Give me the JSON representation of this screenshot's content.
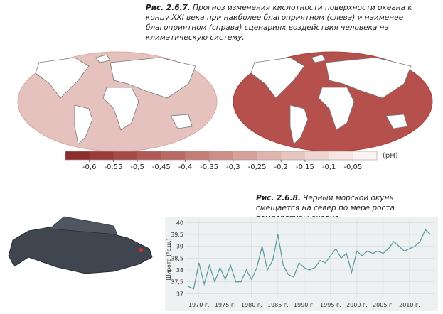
{
  "figure_2_6_7": {
    "caption_label": "Рис. 2.6.7.",
    "caption_text": "Прогноз изменения кислотности поверхности океана к концу XXI века при наиболее благоприятном (слева) и наименее благоприятном (справа) сценариях воздействия человека на климатическую систему.",
    "colorbar": {
      "unit": "(pH)",
      "colors": [
        "#8e2e2c",
        "#9a3c39",
        "#a54a46",
        "#b05a55",
        "#ba6a65",
        "#c47c76",
        "#cd8e88",
        "#d6a19b",
        "#dfb3ae",
        "#e7c5c1",
        "#eed6d3",
        "#f5e6e4",
        "#fbf4f3"
      ],
      "ticks": [
        {
          "value": -0.6,
          "label": "-0,6"
        },
        {
          "value": -0.55,
          "label": "-0,55"
        },
        {
          "value": -0.5,
          "label": "-0,5"
        },
        {
          "value": -0.45,
          "label": "-0,45"
        },
        {
          "value": -0.4,
          "label": "-0,4"
        },
        {
          "value": -0.35,
          "label": "-0,35"
        },
        {
          "value": -0.3,
          "label": "-0,3"
        },
        {
          "value": -0.25,
          "label": "-0,25"
        },
        {
          "value": -0.2,
          "label": "-0,2"
        },
        {
          "value": -0.15,
          "label": "-0,15"
        },
        {
          "value": -0.1,
          "label": "-0,1"
        },
        {
          "value": -0.05,
          "label": "-0,05"
        }
      ]
    }
  },
  "chart_data": {
    "type": "line",
    "caption_label": "Рис. 2.6.8.",
    "title": "Чёрный морской окунь смещается на север по мере роста температуры океана.",
    "y_label": "Широта (°с.ш.)",
    "x": [
      1968,
      1969,
      1970,
      1971,
      1972,
      1973,
      1974,
      1975,
      1976,
      1977,
      1978,
      1979,
      1980,
      1981,
      1982,
      1983,
      1984,
      1985,
      1986,
      1987,
      1988,
      1989,
      1990,
      1991,
      1992,
      1993,
      1994,
      1995,
      1996,
      1997,
      1998,
      1999,
      2000,
      2001,
      2002,
      2003,
      2004,
      2005,
      2006,
      2007,
      2008,
      2009,
      2010,
      2011,
      2012,
      2013,
      2014
    ],
    "series": [
      {
        "color": "#5f9ea0",
        "values": [
          37.3,
          37.2,
          38.3,
          37.4,
          38.2,
          37.5,
          38.1,
          37.6,
          38.2,
          37.5,
          37.5,
          38.0,
          37.6,
          38.1,
          39.0,
          38.0,
          38.4,
          39.5,
          38.2,
          37.8,
          37.7,
          38.3,
          38.1,
          38.0,
          38.1,
          38.4,
          38.3,
          38.6,
          38.9,
          38.5,
          38.7,
          37.9,
          38.8,
          38.6,
          38.8,
          38.7,
          38.8,
          38.7,
          38.9,
          39.2,
          39.0,
          38.8,
          38.9,
          39.0,
          39.2,
          39.7,
          39.5
        ]
      }
    ],
    "xlim": [
      1967.6,
      2014.6
    ],
    "ylim": [
      36.8,
      40.1
    ],
    "xticks": [
      {
        "value": 1970,
        "label": "1970 г."
      },
      {
        "value": 1975,
        "label": "1975 г."
      },
      {
        "value": 1980,
        "label": "1980 г."
      },
      {
        "value": 1985,
        "label": "1985 г."
      },
      {
        "value": 1990,
        "label": "1990 г."
      },
      {
        "value": 1995,
        "label": "1995 г."
      },
      {
        "value": 2000,
        "label": "2000 г."
      },
      {
        "value": 2005,
        "label": "2005 г."
      },
      {
        "value": 2010,
        "label": "2010 г."
      }
    ],
    "yticks": [
      37,
      {
        "value": 37.5,
        "label": "37,5"
      },
      38,
      {
        "value": 38.5,
        "label": "38,5"
      },
      39,
      {
        "value": 39.5,
        "label": "39,5"
      },
      40
    ],
    "grid": true
  }
}
